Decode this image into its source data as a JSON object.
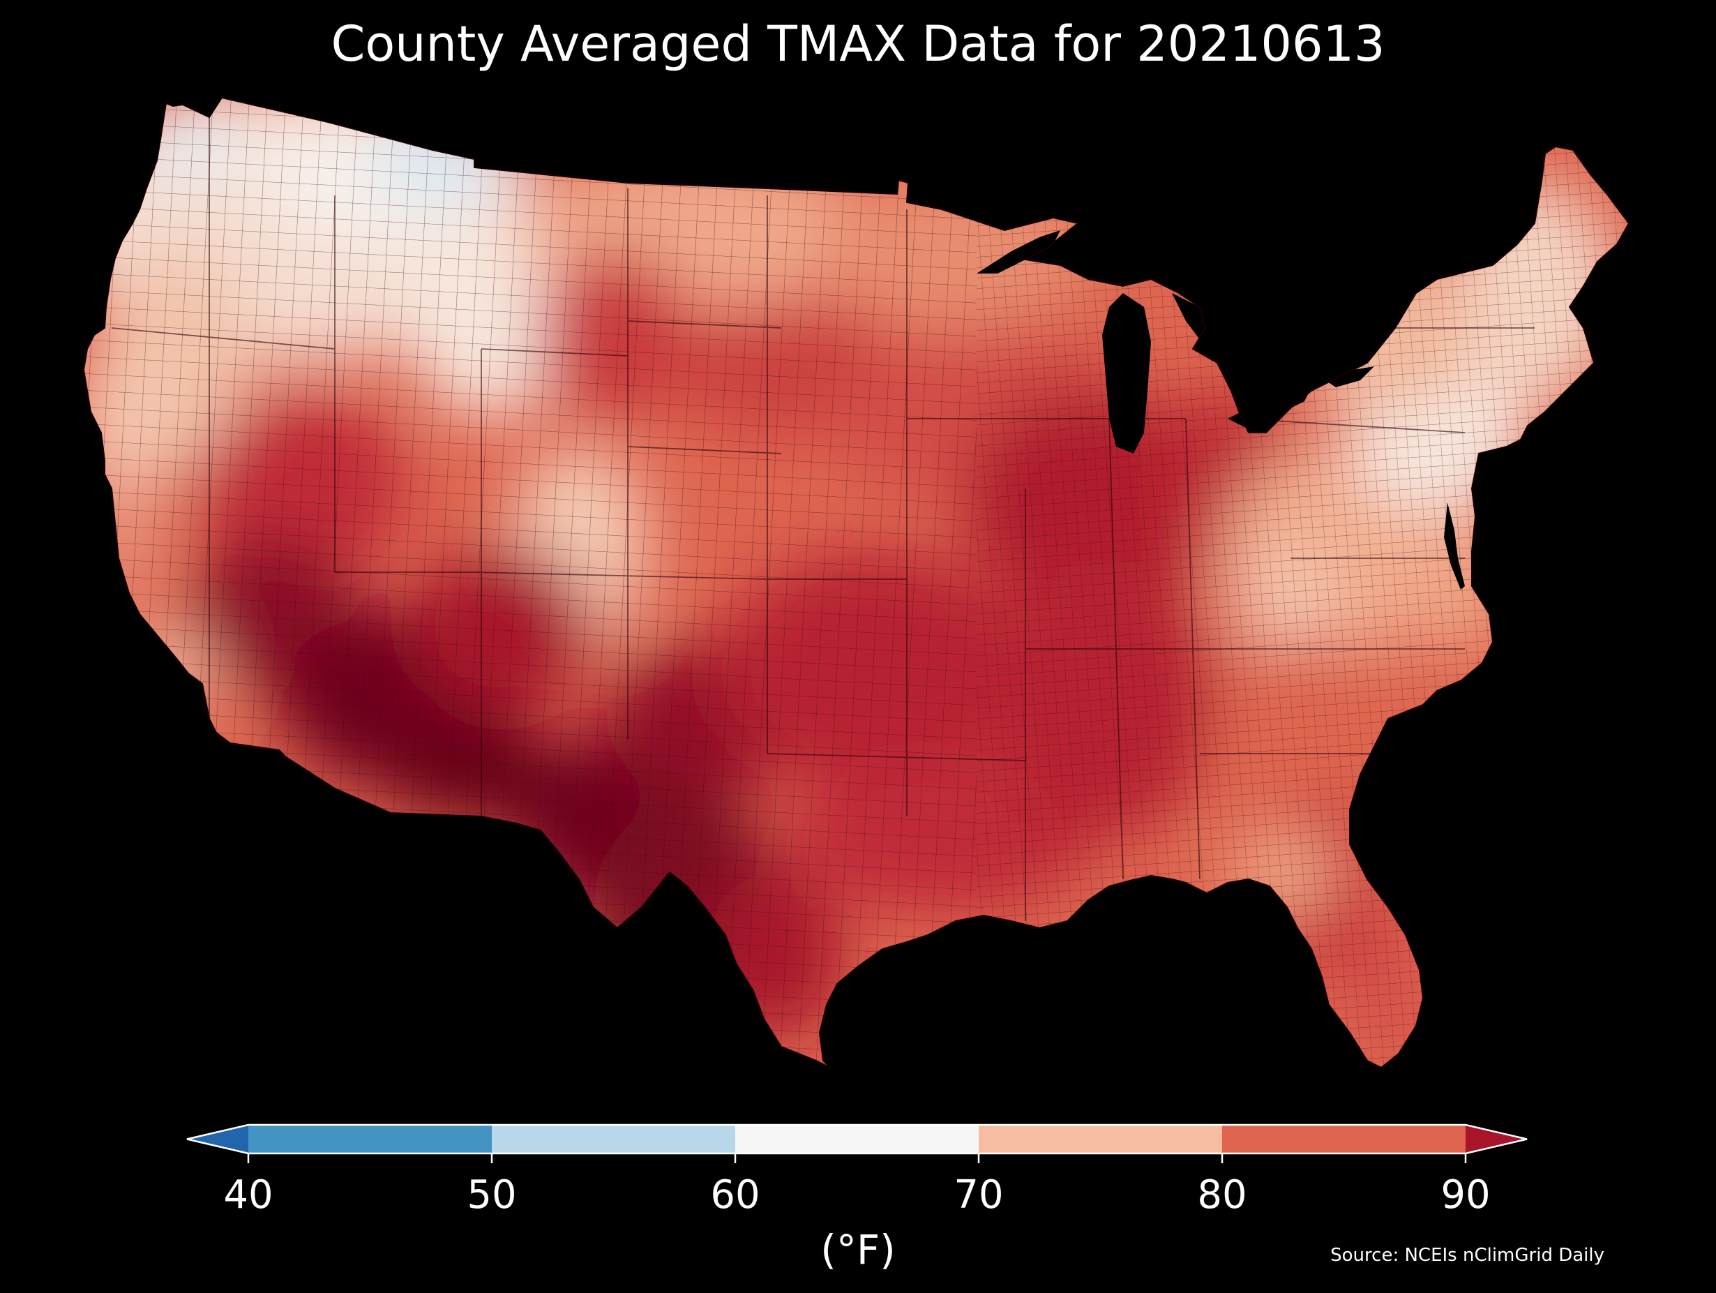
{
  "title": "County Averaged TMAX Data for 20210613",
  "colorbar": {
    "unit_label": "(°F)",
    "ticks": [
      "40",
      "50",
      "60",
      "70",
      "80",
      "90"
    ],
    "bins": [
      {
        "min": 40,
        "max": 50,
        "color": "#4393c3"
      },
      {
        "min": 50,
        "max": 60,
        "color": "#b8d8ea"
      },
      {
        "min": 60,
        "max": 70,
        "color": "#f7f7f7"
      },
      {
        "min": 70,
        "max": 80,
        "color": "#f7bda0"
      },
      {
        "min": 80,
        "max": 90,
        "color": "#de6650"
      }
    ],
    "under_color": "#2166ac",
    "over_color": "#a81529",
    "outline_color": "#ffffff"
  },
  "source": "Source: NCEIs nClimGrid Daily",
  "map": {
    "background": "#000000",
    "land_colors": {
      "coolest": "#dce9f3",
      "mild": "#f7efe9",
      "warm": "#f2ad8e",
      "hot": "#d6574a",
      "hotter": "#bb2533",
      "hottest": "#7d0a22",
      "extreme": "#650018"
    }
  }
}
